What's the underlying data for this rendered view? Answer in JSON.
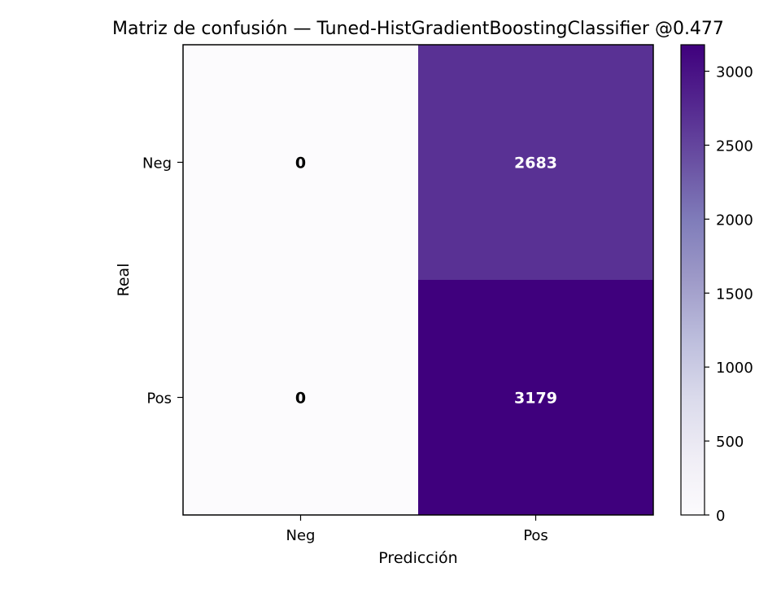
{
  "chart_data": {
    "type": "heatmap",
    "title": "Matriz de confusión — Tuned-HistGradientBoostingClassifier @0.477",
    "xlabel": "Predicción",
    "ylabel": "Real",
    "x_categories": [
      "Neg",
      "Pos"
    ],
    "y_categories": [
      "Neg",
      "Pos"
    ],
    "matrix": [
      [
        0,
        2683
      ],
      [
        0,
        3179
      ]
    ],
    "colormap": "Purples",
    "colorbar": {
      "min": 0,
      "max": 3179,
      "ticks": [
        0,
        500,
        1000,
        1500,
        2000,
        2500,
        3000
      ]
    },
    "grid": false
  }
}
